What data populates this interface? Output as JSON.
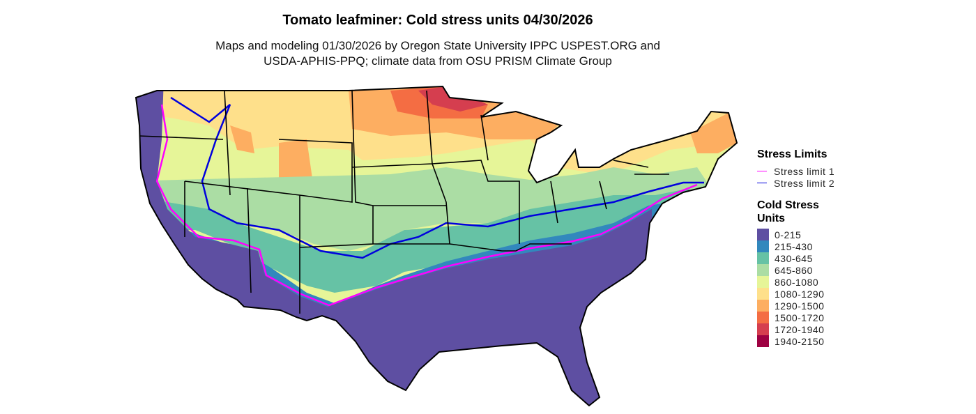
{
  "title": "Tomato leafminer: Cold stress units 04/30/2026",
  "subtitle_line1": "Maps and modeling 01/30/2026 by Oregon State University IPPC USPEST.ORG and",
  "subtitle_line2": "USDA-APHIS-PPQ; climate data from OSU PRISM Climate Group",
  "stress_legend": {
    "title": "Stress Limits",
    "items": [
      {
        "label": "Stress limit 1",
        "color": "#FF00FF"
      },
      {
        "label": "Stress limit 2",
        "color": "#0000DD"
      }
    ]
  },
  "csu_legend": {
    "title_line1": "Cold Stress",
    "title_line2": "Units",
    "items": [
      {
        "label": "0-215",
        "color": "#5E4FA2"
      },
      {
        "label": "215-430",
        "color": "#3288BD"
      },
      {
        "label": "430-645",
        "color": "#66C2A5"
      },
      {
        "label": "645-860",
        "color": "#ABDDA4"
      },
      {
        "label": "860-1080",
        "color": "#E6F598"
      },
      {
        "label": "1080-1290",
        "color": "#FEE08B"
      },
      {
        "label": "1290-1500",
        "color": "#FDAE61"
      },
      {
        "label": "1500-1720",
        "color": "#F46D43"
      },
      {
        "label": "1720-1940",
        "color": "#D53E4F"
      },
      {
        "label": "1940-2150",
        "color": "#9E0142"
      }
    ]
  }
}
